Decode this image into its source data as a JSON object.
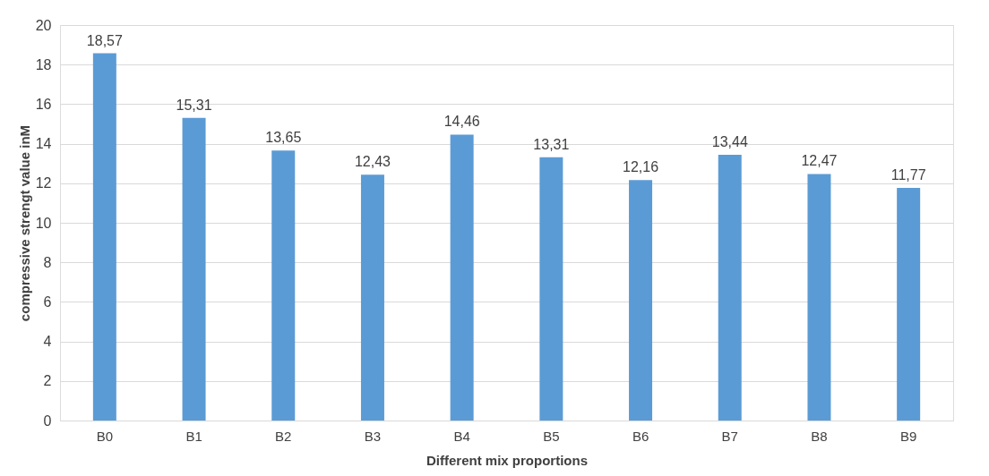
{
  "chart_data": {
    "type": "bar",
    "xlabel": "Different mix proportions",
    "ylabel": "compressive strengt value inM",
    "categories": [
      "B0",
      "B1",
      "B2",
      "B3",
      "B4",
      "B5",
      "B6",
      "B7",
      "B8",
      "B9"
    ],
    "values": [
      18.57,
      15.31,
      13.65,
      12.43,
      14.46,
      13.31,
      12.16,
      13.44,
      12.47,
      11.77
    ],
    "value_labels": [
      "18,57",
      "15,31",
      "13,65",
      "12,43",
      "14,46",
      "13,31",
      "12,16",
      "13,44",
      "12,47",
      "11,77"
    ],
    "color": "#5b9bd5",
    "ylim": [
      0,
      20
    ],
    "yticks": [
      0,
      2,
      4,
      6,
      8,
      10,
      12,
      14,
      16,
      18,
      20
    ],
    "grid": "y"
  }
}
